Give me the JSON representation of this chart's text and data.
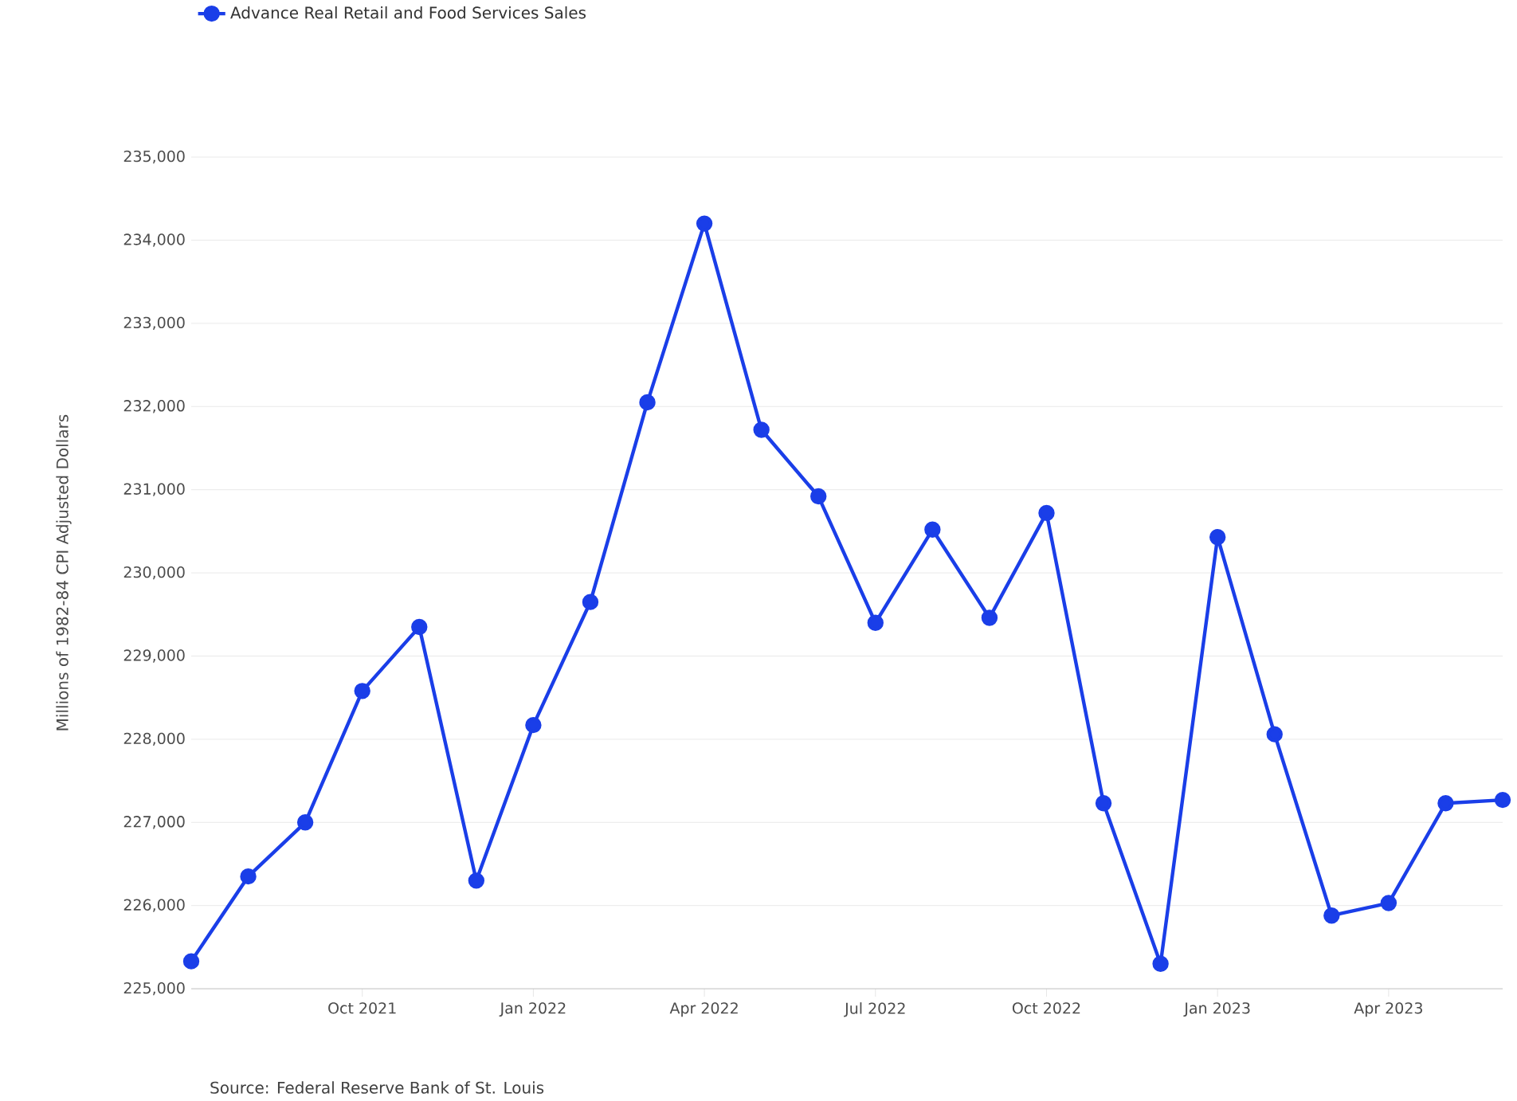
{
  "chart_data": {
    "type": "line",
    "x": [
      "2021-07",
      "2021-08",
      "2021-09",
      "2021-10",
      "2021-11",
      "2021-12",
      "2022-01",
      "2022-02",
      "2022-03",
      "2022-04",
      "2022-05",
      "2022-06",
      "2022-07",
      "2022-08",
      "2022-09",
      "2022-10",
      "2022-11",
      "2022-12",
      "2023-01",
      "2023-02",
      "2023-03",
      "2023-04",
      "2023-05",
      "2023-06"
    ],
    "series": [
      {
        "name": "Advance Real Retail and Food Services Sales",
        "color": "#1a3ee8",
        "values": [
          225330,
          226350,
          227000,
          228580,
          229350,
          226300,
          228170,
          229650,
          232050,
          234200,
          231720,
          230920,
          229400,
          230520,
          229460,
          230720,
          227230,
          225300,
          230430,
          228060,
          225880,
          226030,
          227230,
          227270
        ]
      }
    ],
    "ylabel": "Millions of 1982-84 CPI Adjusted Dollars",
    "xlim": [
      "2021-07",
      "2023-06"
    ],
    "xticks": [
      {
        "value": "2021-10",
        "label": "Oct 2021"
      },
      {
        "value": "2022-01",
        "label": "Jan 2022"
      },
      {
        "value": "2022-04",
        "label": "Apr 2022"
      },
      {
        "value": "2022-07",
        "label": "Jul 2022"
      },
      {
        "value": "2022-10",
        "label": "Oct 2022"
      },
      {
        "value": "2023-01",
        "label": "Jan 2023"
      },
      {
        "value": "2023-04",
        "label": "Apr 2023"
      }
    ],
    "ylim": [
      225000,
      235000
    ],
    "yticks": [
      {
        "value": 225000,
        "label": "225,000"
      },
      {
        "value": 226000,
        "label": "226,000"
      },
      {
        "value": 227000,
        "label": "227,000"
      },
      {
        "value": 228000,
        "label": "228,000"
      },
      {
        "value": 229000,
        "label": "229,000"
      },
      {
        "value": 230000,
        "label": "230,000"
      },
      {
        "value": 231000,
        "label": "231,000"
      },
      {
        "value": 232000,
        "label": "232,000"
      },
      {
        "value": 233000,
        "label": "233,000"
      },
      {
        "value": 234000,
        "label": "234,000"
      },
      {
        "value": 235000,
        "label": "235,000"
      }
    ],
    "grid": "y",
    "marker": "circle",
    "line_style": "solid",
    "legend": "top left",
    "annotations": [
      "Source: Federal Reserve Bank of St. Louis"
    ]
  }
}
